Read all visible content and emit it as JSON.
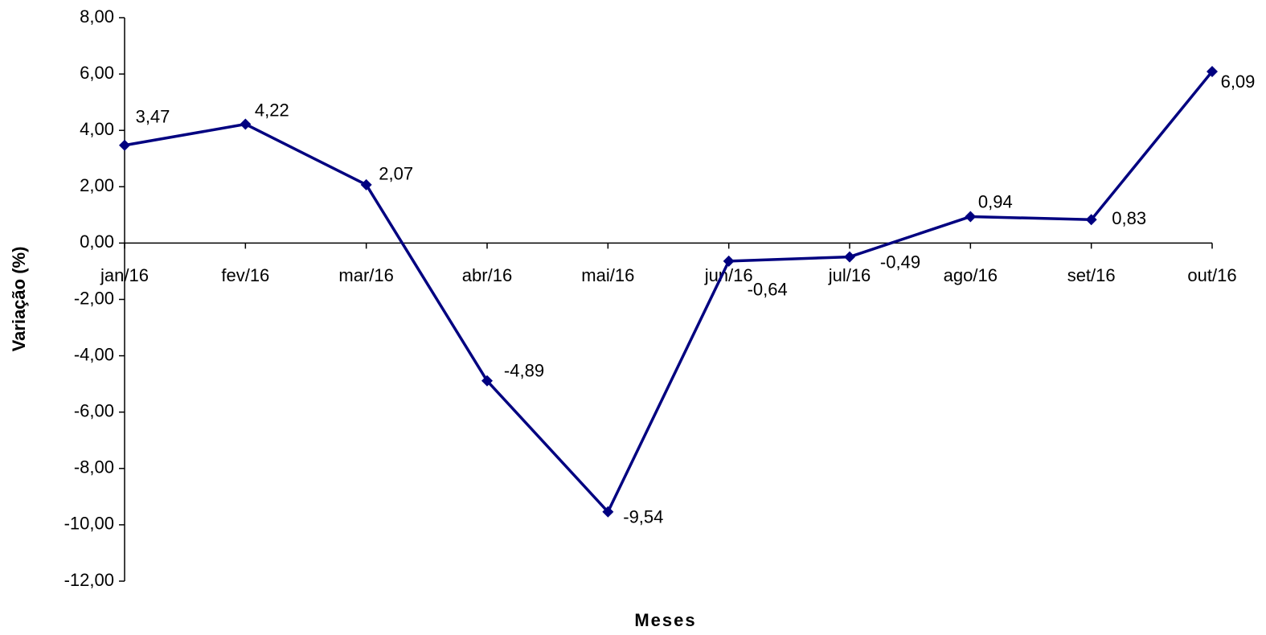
{
  "chart_data": {
    "type": "line",
    "x_label": "Meses",
    "y_label": "Variação (%)",
    "categories": [
      "jan/16",
      "fev/16",
      "mar/16",
      "abr/16",
      "mai/16",
      "jun/16",
      "jul/16",
      "ago/16",
      "set/16",
      "out/16"
    ],
    "series": [
      {
        "color": "#000080",
        "values": [
          3.47,
          4.22,
          2.07,
          -4.89,
          -9.54,
          -0.64,
          -0.49,
          0.94,
          0.83,
          6.09
        ],
        "value_labels": [
          "3,47",
          "4,22",
          "2,07",
          "-4,89",
          "-9,54",
          "-0,64",
          "-0,49",
          "0,94",
          "0,83",
          "6,09"
        ]
      }
    ],
    "ylim": [
      -12,
      8
    ],
    "yticks": [
      {
        "value": -12,
        "label": "-12,00"
      },
      {
        "value": -10,
        "label": "-10,00"
      },
      {
        "value": -8,
        "label": "-8,00"
      },
      {
        "value": -6,
        "label": "-6,00"
      },
      {
        "value": -4,
        "label": "-4,00"
      },
      {
        "value": -2,
        "label": "-2,00"
      },
      {
        "value": 0,
        "label": "0,00"
      },
      {
        "value": 2,
        "label": "2,00"
      },
      {
        "value": 4,
        "label": "4,00"
      },
      {
        "value": 6,
        "label": "6,00"
      },
      {
        "value": 8,
        "label": "8,00"
      }
    ]
  }
}
